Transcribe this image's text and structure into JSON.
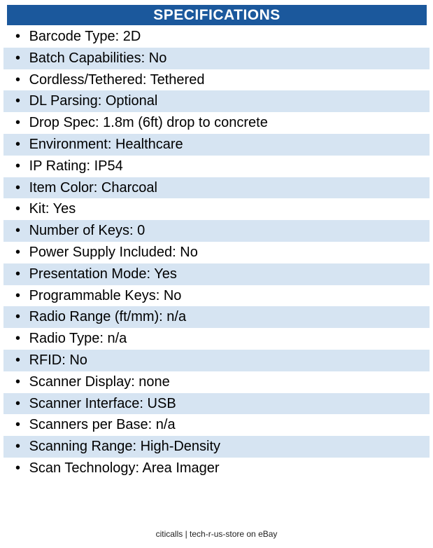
{
  "page": {
    "title": "SPECIFICATIONS"
  },
  "colors": {
    "header_bg": "#1B589C",
    "header_text": "#FFFFFF",
    "row_alt_bg": "#D6E4F2",
    "text": "#000000",
    "footer_text": "#222222"
  },
  "bullet": "•",
  "specs": [
    {
      "label": "Barcode Type",
      "value": "2D"
    },
    {
      "label": "Batch Capabilities",
      "value": "No"
    },
    {
      "label": "Cordless/Tethered",
      "value": "Tethered"
    },
    {
      "label": "DL Parsing",
      "value": "Optional"
    },
    {
      "label": "Drop Spec",
      "value": "1.8m (6ft) drop to concrete"
    },
    {
      "label": "Environment",
      "value": "Healthcare"
    },
    {
      "label": "IP Rating",
      "value": "IP54"
    },
    {
      "label": "Item Color",
      "value": "Charcoal"
    },
    {
      "label": "Kit",
      "value": "Yes"
    },
    {
      "label": "Number of Keys",
      "value": "0"
    },
    {
      "label": "Power Supply Included",
      "value": "No"
    },
    {
      "label": "Presentation Mode",
      "value": "Yes"
    },
    {
      "label": "Programmable Keys",
      "value": "No"
    },
    {
      "label": "Radio Range (ft/mm)",
      "value": "n/a"
    },
    {
      "label": "Radio Type",
      "value": "n/a"
    },
    {
      "label": "RFID",
      "value": "No"
    },
    {
      "label": "Scanner Display",
      "value": "none"
    },
    {
      "label": "Scanner Interface",
      "value": "USB"
    },
    {
      "label": "Scanners per Base",
      "value": "n/a"
    },
    {
      "label": "Scanning Range",
      "value": "High-Density"
    },
    {
      "label": "Scan Technology",
      "value": "Area Imager"
    }
  ],
  "footer": {
    "text": "citicalls | tech-r-us-store on eBay"
  }
}
